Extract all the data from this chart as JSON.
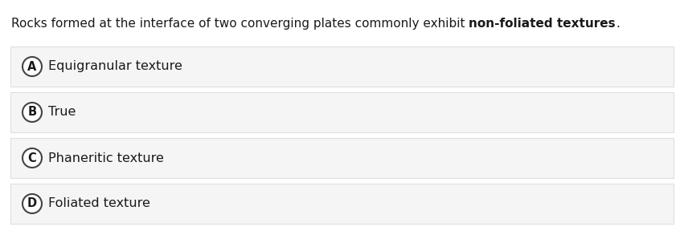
{
  "question_plain": "Rocks formed at the interface of two converging plates commonly exhibit ",
  "question_bold": "non-foliated textures",
  "question_end": ".",
  "options": [
    {
      "letter": "A",
      "text": "Equigranular texture"
    },
    {
      "letter": "B",
      "text": "True"
    },
    {
      "letter": "C",
      "text": "Phaneritic texture"
    },
    {
      "letter": "D",
      "text": "Foliated texture"
    }
  ],
  "bg_color": "#ffffff",
  "option_bg_color": "#f5f5f5",
  "option_border_color": "#d8d8d8",
  "text_color": "#1a1a1a",
  "circle_edge_color": "#444444",
  "circle_face_color": "#ffffff",
  "question_fontsize": 11.0,
  "option_fontsize": 11.5,
  "letter_fontsize": 10.5,
  "fig_width": 8.51,
  "fig_height": 3.13,
  "dpi": 100
}
